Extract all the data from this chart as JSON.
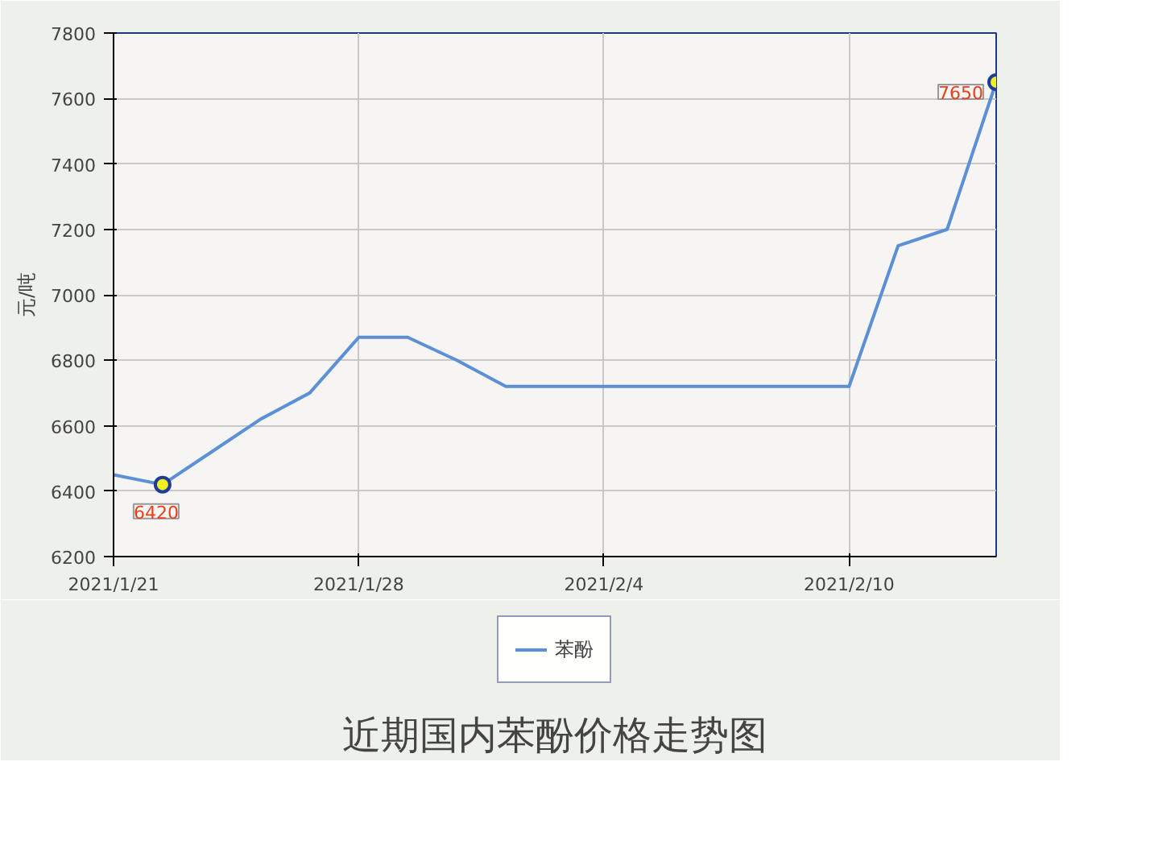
{
  "chart_data": {
    "type": "line",
    "title": "近期国内苯酚价格走势图",
    "ylabel": "元/吨",
    "categories": [
      "2021/1/21",
      null,
      null,
      null,
      null,
      "2021/1/28",
      null,
      null,
      null,
      null,
      "2021/2/4",
      null,
      null,
      null,
      null,
      "2021/2/10",
      null,
      null,
      null
    ],
    "series": [
      {
        "name": "苯酚",
        "color": "#5b8fd6",
        "values": [
          6450,
          6420,
          6520,
          6620,
          6700,
          6870,
          6870,
          6800,
          6720,
          6720,
          6720,
          6720,
          6720,
          6720,
          6720,
          6720,
          7150,
          7200,
          7650
        ],
        "value_labels": [
          null,
          "6420",
          null,
          null,
          null,
          null,
          null,
          null,
          null,
          null,
          null,
          null,
          null,
          null,
          null,
          null,
          null,
          null,
          "7650"
        ]
      }
    ],
    "ylim": [
      6200,
      7800
    ],
    "yticks": [
      6200,
      6400,
      6600,
      6800,
      7000,
      7200,
      7400,
      7600,
      7800
    ],
    "grid": true,
    "legend": "bottom",
    "line_style": "solid"
  }
}
